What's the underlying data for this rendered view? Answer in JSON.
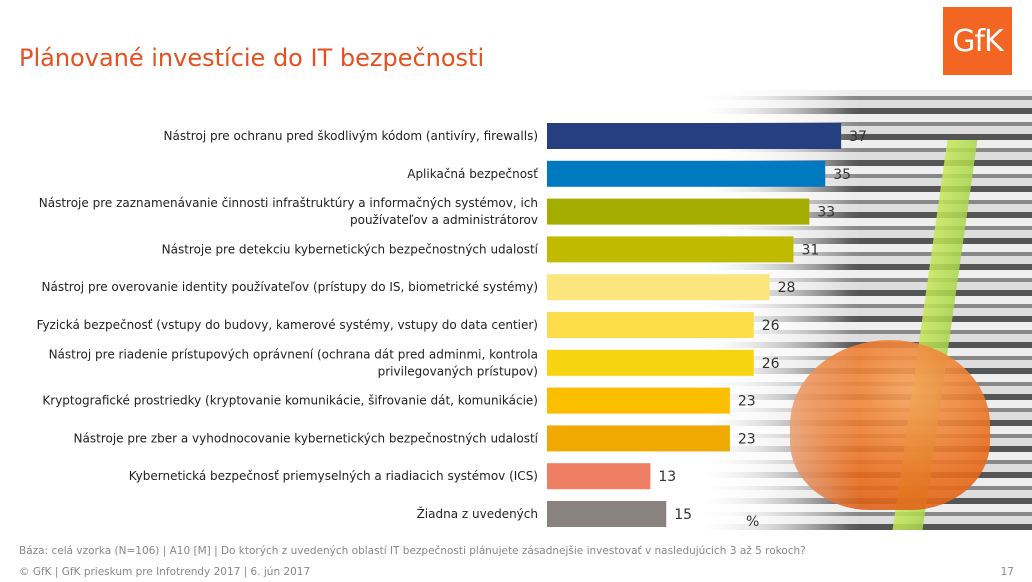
{
  "title": "Plánované investície do IT bezpečnosti",
  "logo": "GfK",
  "chart_data": {
    "type": "bar",
    "orientation": "horizontal",
    "unit": "%",
    "categories": [
      [
        "Nástroj pre ochranu pred škodlivým kódom (antivíry, firewalls)"
      ],
      [
        "Aplikačná bezpečnosť"
      ],
      [
        "Nástroje pre zaznamenávanie činnosti infraštruktúry a informačných systémov, ich",
        "používateľov a administrátorov"
      ],
      [
        "Nástroje pre detekciu kybernetických bezpečnostných udalostí"
      ],
      [
        "Nástroj pre overovanie identity používateľov (prístupy do IS, biometrické systémy)"
      ],
      [
        "Fyzická bezpečnosť (vstupy do budovy, kamerové systémy, vstupy do data centier)"
      ],
      [
        "Nástroj pre riadenie prístupových oprávnení  (ochrana dát pred adminmi, kontrola",
        "privilegovaných prístupov)"
      ],
      [
        "Kryptografické prostriedky (kryptovanie komunikácie, šifrovanie dát, komunikácie)"
      ],
      [
        "Nástroje pre zber a vyhodnocovanie kybernetických bezpečnostných udalostí"
      ],
      [
        "Kybernetická bezpečnosť priemyselných a riadiacich systémov (ICS)"
      ],
      [
        "Žiadna z uvedených"
      ]
    ],
    "values": [
      37,
      35,
      33,
      31,
      28,
      26,
      26,
      23,
      23,
      13,
      15
    ],
    "colors": [
      "#263f80",
      "#0079c1",
      "#a5ae00",
      "#c0bb00",
      "#fde57e",
      "#fddc4a",
      "#f6d410",
      "#fbbf00",
      "#f0a900",
      "#ef7f62",
      "#8a827e"
    ],
    "xlim": [
      0,
      40
    ]
  },
  "footer": {
    "base": "Báza: celá vzorka (N=106) | A10 [M] | Do ktorých z uvedených oblastí IT bezpečnosti plánujete zásadnejšie investovať v nasledujúcich 3 až 5 rokoch?",
    "copyright": "© GfK  | GfK prieskum pre Infotrendy 2017 | 6. jún 2017",
    "page": "17"
  }
}
